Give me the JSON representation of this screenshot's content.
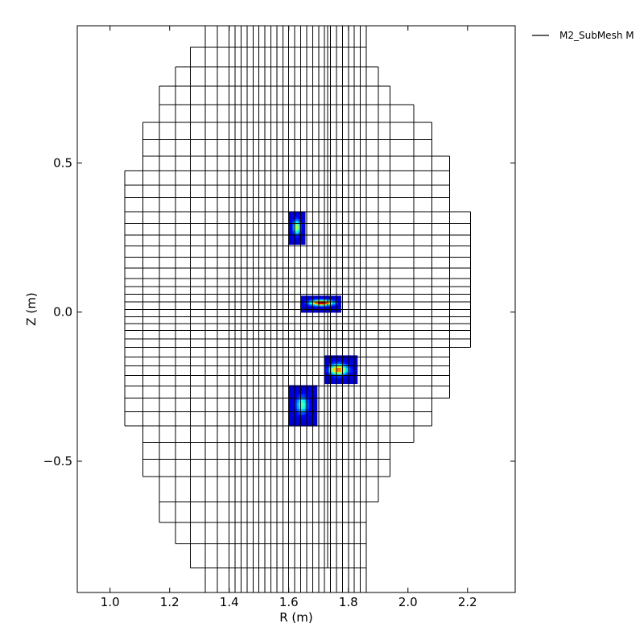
{
  "chart_data": {
    "type": "heatmap",
    "title": "",
    "xlabel": "R (m)",
    "ylabel": "Z (m)",
    "xlim": [
      0.89,
      2.36
    ],
    "ylim": [
      -0.94,
      0.96
    ],
    "x_ticks": [
      1.0,
      1.2,
      1.4,
      1.6,
      1.8,
      2.0,
      2.2
    ],
    "x_tick_labels": [
      "1.0",
      "1.2",
      "1.4",
      "1.6",
      "1.8",
      "2.0",
      "2.2"
    ],
    "y_ticks": [
      0.5,
      0.0,
      -0.5
    ],
    "y_tick_labels": [
      "0.5",
      "0.0",
      "−0.5"
    ],
    "grid": false,
    "legend": {
      "location": "outside-top-right",
      "entries": [
        "M2_SubMesh M"
      ]
    },
    "series": [
      {
        "name": "M2_SubMesh M",
        "type": "mesh",
        "color": "#000000",
        "r_edges": [
          1.32,
          1.36,
          1.4,
          1.42,
          1.44,
          1.46,
          1.48,
          1.5,
          1.52,
          1.54,
          1.56,
          1.58,
          1.6,
          1.62,
          1.64,
          1.66,
          1.68,
          1.7,
          1.72,
          1.74,
          1.76,
          1.78,
          1.8,
          1.82,
          1.84,
          1.86
        ],
        "column_edges_left": [
          {
            "r": 1.05,
            "zmin": -0.382,
            "zmax": 0.474
          },
          {
            "r": 1.11,
            "zmin": -0.552,
            "zmax": 0.636
          },
          {
            "r": 1.165,
            "zmin": -0.705,
            "zmax": 0.758
          },
          {
            "r": 1.22,
            "zmin": -0.777,
            "zmax": 0.823
          },
          {
            "r": 1.27,
            "zmin": -0.858,
            "zmax": 0.888
          },
          {
            "r": 1.32,
            "zmin": -0.94,
            "zmax": 0.96
          }
        ],
        "column_edges_right": [
          {
            "r": 1.73,
            "zmin": -0.858,
            "zmax": 0.96
          },
          {
            "r": 1.8,
            "zmin": -0.777,
            "zmax": 0.888
          },
          {
            "r": 1.86,
            "zmin": -0.705,
            "zmax": 0.888
          },
          {
            "r": 1.9,
            "zmin": -0.636,
            "zmax": 0.823
          },
          {
            "r": 1.94,
            "zmin": -0.552,
            "zmax": 0.758
          },
          {
            "r": 2.02,
            "zmin": -0.437,
            "zmax": 0.695
          },
          {
            "r": 2.08,
            "zmin": -0.382,
            "zmax": 0.636
          },
          {
            "r": 2.14,
            "zmin": -0.288,
            "zmax": 0.523
          },
          {
            "r": 2.21,
            "zmin": -0.118,
            "zmax": 0.336
          }
        ],
        "z_edges": [
          0.96,
          0.888,
          0.823,
          0.758,
          0.695,
          0.636,
          0.578,
          0.523,
          0.474,
          0.426,
          0.384,
          0.336,
          0.297,
          0.258,
          0.222,
          0.184,
          0.148,
          0.113,
          0.086,
          0.06,
          0.034,
          0.009,
          -0.016,
          -0.038,
          -0.062,
          -0.09,
          -0.118,
          -0.15,
          -0.18,
          -0.212,
          -0.248,
          -0.288,
          -0.334,
          -0.382,
          -0.437,
          -0.494,
          -0.552,
          -0.636,
          -0.705,
          -0.777,
          -0.858,
          -0.94
        ]
      }
    ],
    "hotspots": [
      {
        "r0": 1.6,
        "r1": 1.655,
        "z0": 0.227,
        "z1": 0.336,
        "cr": 1.627,
        "cz": 0.285,
        "sr": 0.008,
        "sz": 0.016,
        "peak": 0.55
      },
      {
        "r0": 1.64,
        "r1": 1.775,
        "z0": -0.001,
        "z1": 0.055,
        "cr": 1.71,
        "cz": 0.032,
        "sr": 0.025,
        "sz": 0.006,
        "peak": 1.0
      },
      {
        "r0": 1.72,
        "r1": 1.83,
        "z0": -0.24,
        "z1": -0.145,
        "cr": 1.767,
        "cz": -0.192,
        "sr": 0.02,
        "sz": 0.012,
        "peak": 0.78
      },
      {
        "r0": 1.6,
        "r1": 1.695,
        "z0": -0.382,
        "z1": -0.245,
        "cr": 1.645,
        "cz": -0.31,
        "sr": 0.013,
        "sz": 0.019,
        "peak": 0.42
      }
    ],
    "colormap": "jet"
  }
}
